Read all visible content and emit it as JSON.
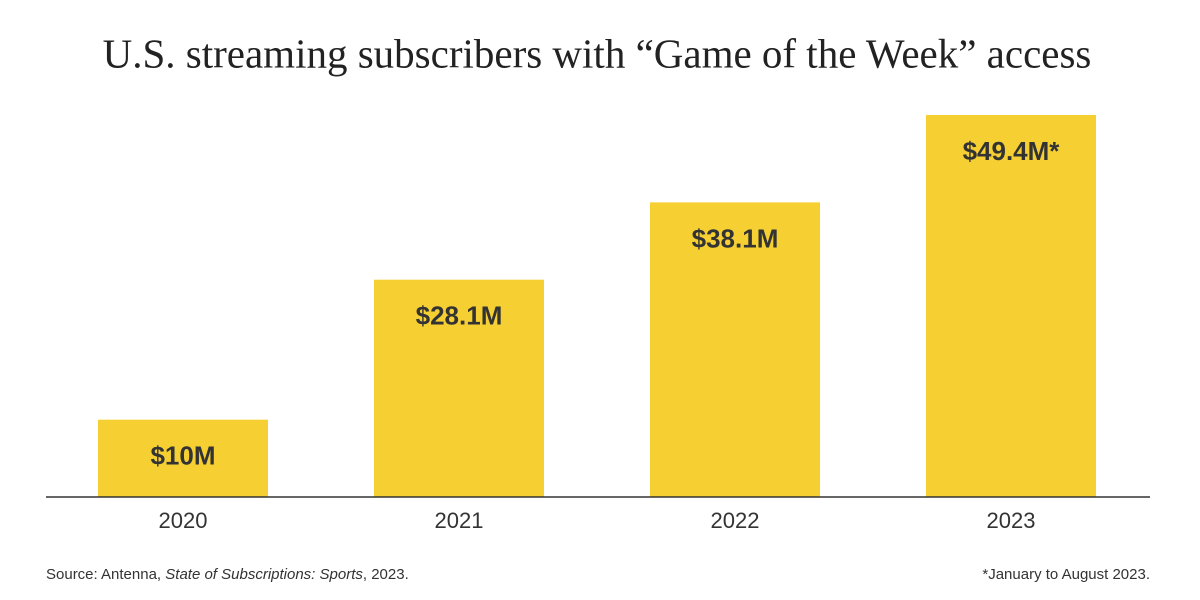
{
  "chart_data": {
    "type": "bar",
    "title": "U.S. streaming subscribers with “Game of the Week” access",
    "categories": [
      "2020",
      "2021",
      "2022",
      "2023"
    ],
    "values": [
      10,
      28.1,
      38.1,
      49.4
    ],
    "value_labels": [
      "$10M",
      "$28.1M",
      "$38.1M",
      "$49.4M*"
    ],
    "color": "#f6d032",
    "source": {
      "prefix": "Source: Antenna, ",
      "italic": "State of Subscriptions: Sports",
      "suffix": ", 2023."
    },
    "footnote": "*January to August 2023."
  }
}
